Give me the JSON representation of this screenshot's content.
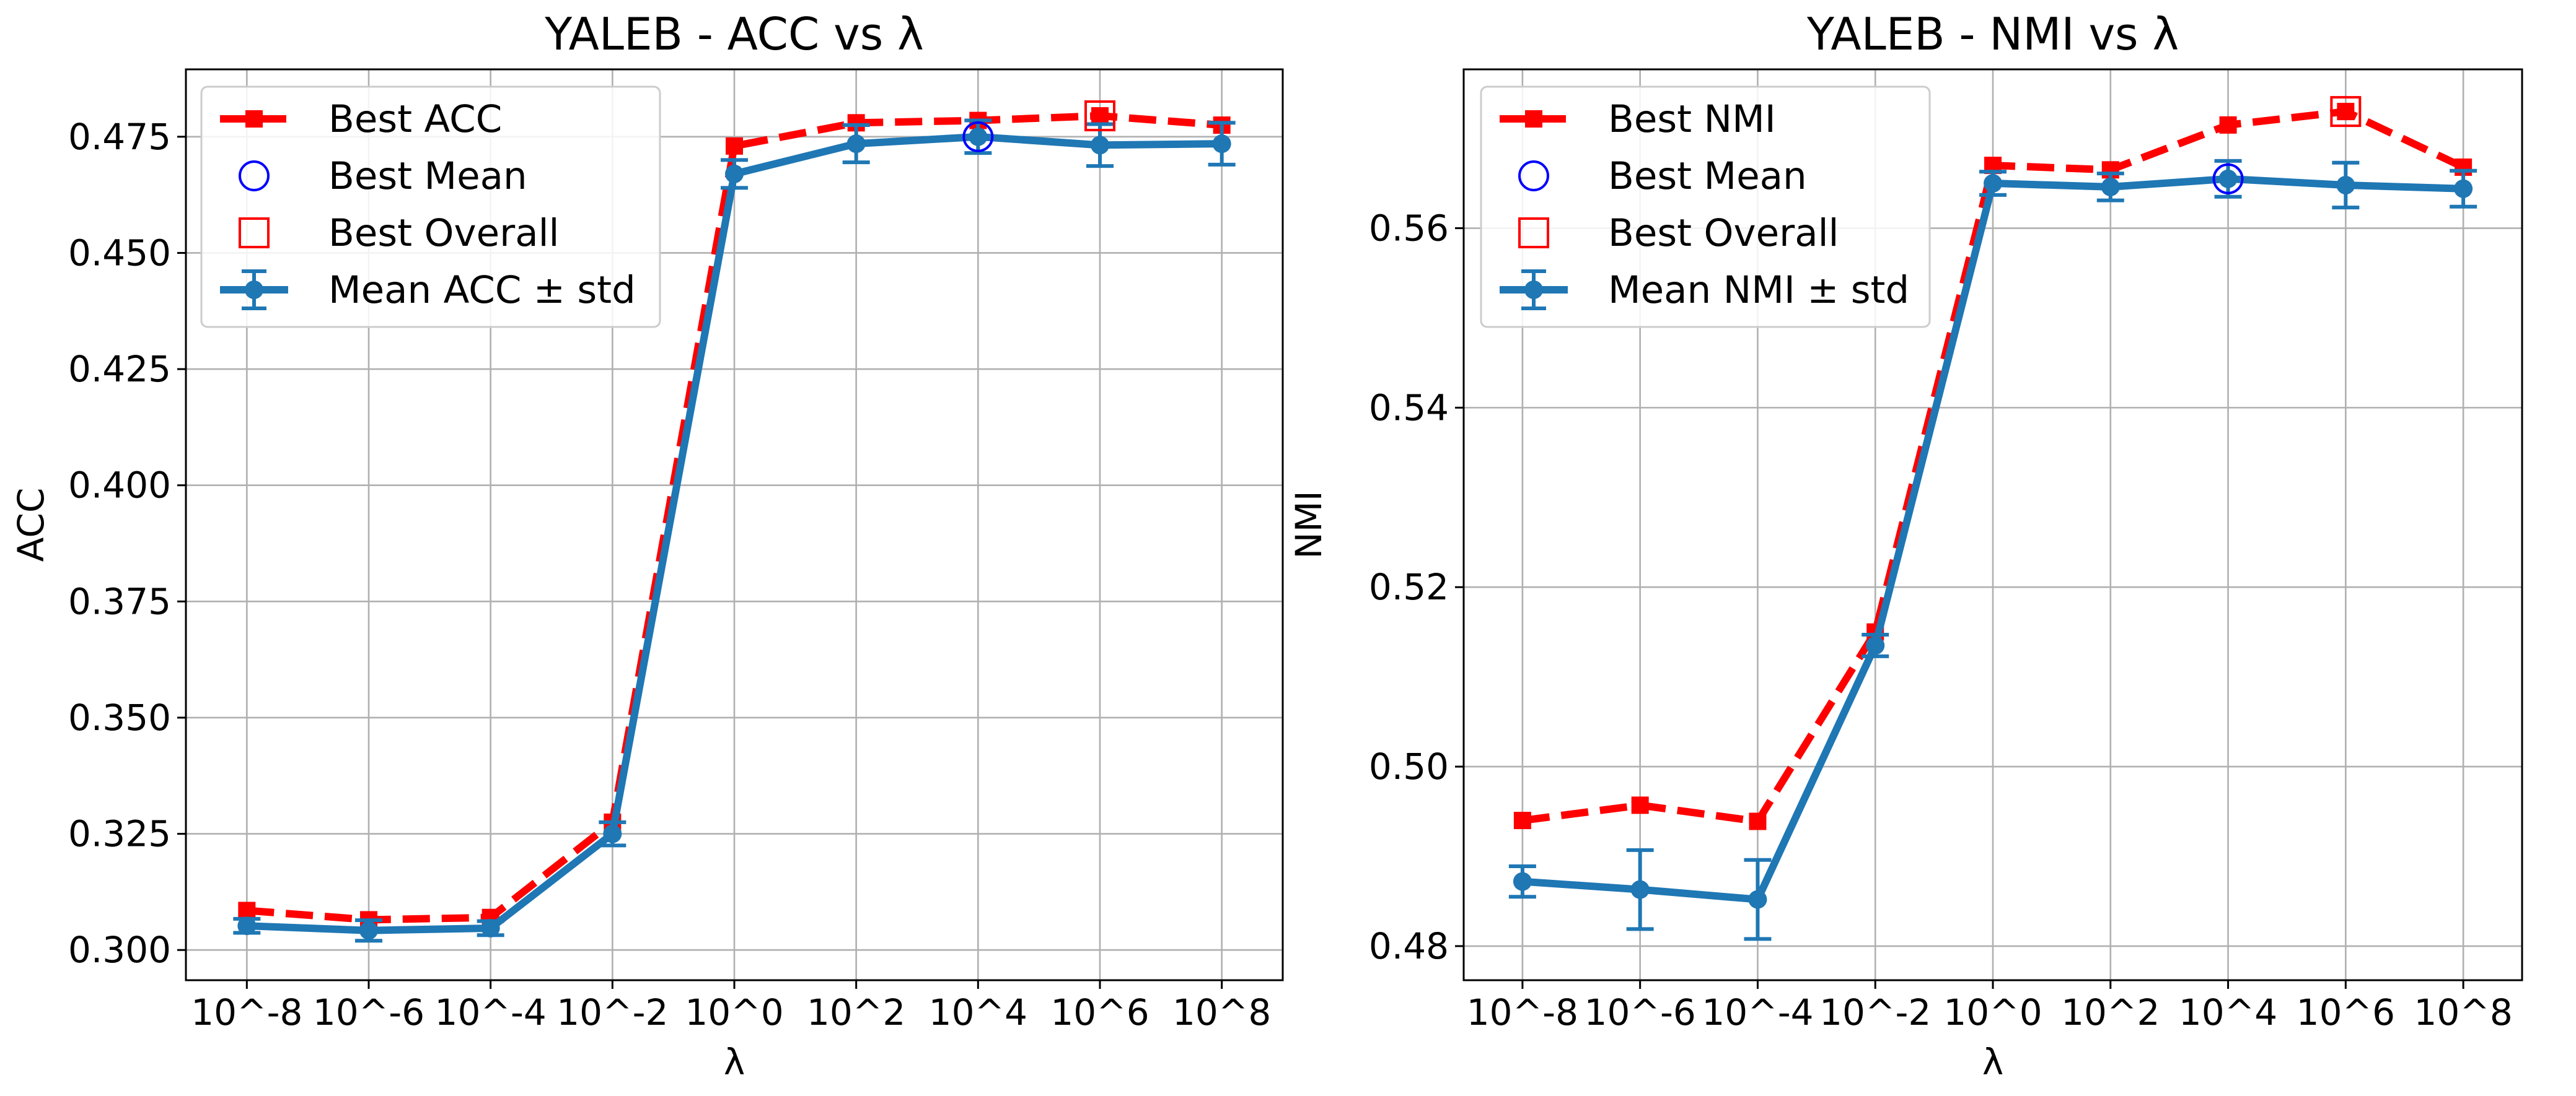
{
  "chart_data": [
    {
      "type": "line",
      "title": "YALEB - ACC vs λ",
      "xlabel": "λ",
      "ylabel": "ACC",
      "categories": [
        "10^-8",
        "10^-6",
        "10^-4",
        "10^-2",
        "10^0",
        "10^2",
        "10^4",
        "10^6",
        "10^8"
      ],
      "ylim": [
        0.2935,
        0.4895
      ],
      "yticks": [
        "0.300",
        "0.325",
        "0.350",
        "0.375",
        "0.400",
        "0.425",
        "0.450",
        "0.475"
      ],
      "grid": true,
      "legend_position": "top-left",
      "series": [
        {
          "name": "Best ACC",
          "style": "dashed-square",
          "color": "#ff0000",
          "values": [
            0.3085,
            0.3065,
            0.307,
            0.3275,
            0.473,
            0.478,
            0.4785,
            0.4795,
            0.4775
          ]
        },
        {
          "name": "Mean ACC ± std",
          "style": "errorbar-line",
          "color": "#1f77b4",
          "values": [
            0.3052,
            0.3042,
            0.3047,
            0.325,
            0.467,
            0.4735,
            0.475,
            0.4732,
            0.4735
          ],
          "std": [
            0.0015,
            0.0022,
            0.0015,
            0.0025,
            0.003,
            0.004,
            0.0035,
            0.0045,
            0.0045
          ]
        }
      ],
      "markers": [
        {
          "name": "Best Mean",
          "shape": "circle",
          "color": "#0000ff",
          "category": "10^4",
          "value": 0.475
        },
        {
          "name": "Best Overall",
          "shape": "square",
          "color": "#ff0000",
          "category": "10^6",
          "value": 0.4795
        }
      ]
    },
    {
      "type": "line",
      "title": "YALEB - NMI vs λ",
      "xlabel": "λ",
      "ylabel": "NMI",
      "categories": [
        "10^-8",
        "10^-6",
        "10^-4",
        "10^-2",
        "10^0",
        "10^2",
        "10^4",
        "10^6",
        "10^8"
      ],
      "ylim": [
        0.4762,
        0.5777
      ],
      "yticks": [
        "0.48",
        "0.50",
        "0.52",
        "0.54",
        "0.56"
      ],
      "grid": true,
      "legend_position": "top-left",
      "series": [
        {
          "name": "Best NMI",
          "style": "dashed-square",
          "color": "#ff0000",
          "values": [
            0.494,
            0.4957,
            0.4939,
            0.515,
            0.567,
            0.5665,
            0.5715,
            0.573,
            0.5668
          ]
        },
        {
          "name": "Mean NMI ± std",
          "style": "errorbar-line",
          "color": "#1f77b4",
          "values": [
            0.4872,
            0.4863,
            0.4852,
            0.5135,
            0.565,
            0.5646,
            0.5655,
            0.5648,
            0.5644
          ],
          "std": [
            0.0017,
            0.0044,
            0.0044,
            0.0012,
            0.0013,
            0.0015,
            0.002,
            0.0025,
            0.002
          ]
        }
      ],
      "markers": [
        {
          "name": "Best Mean",
          "shape": "circle",
          "color": "#0000ff",
          "category": "10^4",
          "value": 0.5655
        },
        {
          "name": "Best Overall",
          "shape": "square",
          "color": "#ff0000",
          "category": "10^6",
          "value": 0.573
        }
      ]
    }
  ]
}
